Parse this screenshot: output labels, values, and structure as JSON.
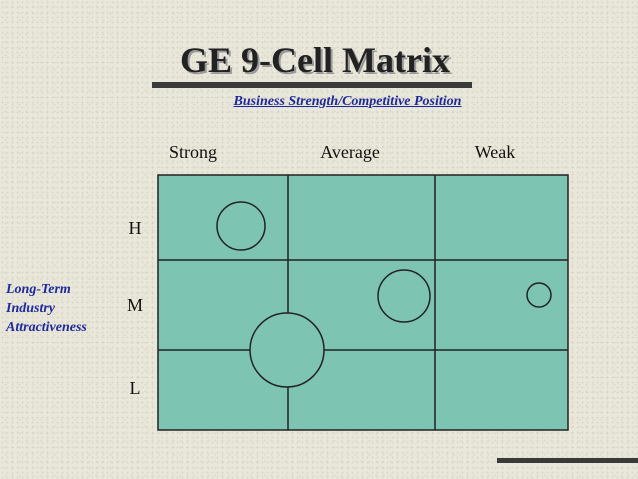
{
  "slide": {
    "title": "GE 9-Cell Matrix",
    "subtitle": "Business Strength/Competitive Position",
    "columns": [
      "Strong",
      "Average",
      "Weak"
    ],
    "rows": [
      "H",
      "M",
      "L"
    ],
    "side_label_lines": [
      "Long-Term",
      "Industry",
      "Attractiveness"
    ]
  },
  "colors": {
    "cell_fill": "#7ec4b2",
    "grid_line": "#222222",
    "subtitle_text": "#1c2a9c"
  }
}
